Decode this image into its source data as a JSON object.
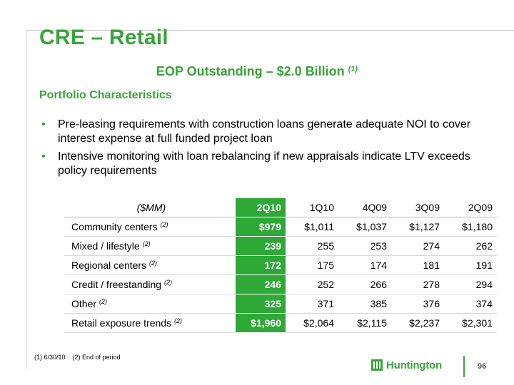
{
  "title": "CRE – Retail",
  "subtitle": {
    "text": "EOP Outstanding – $2.0 Billion ",
    "note": "(1)"
  },
  "section": "Portfolio Characteristics",
  "bullets": [
    "Pre-leasing requirements with construction loans generate adequate NOI to cover interest expense at full funded project loan",
    "Intensive monitoring with loan rebalancing if new appraisals indicate LTV exceeds policy requirements"
  ],
  "table": {
    "unit_header": "($MM)",
    "columns": [
      "2Q10",
      "1Q10",
      "4Q09",
      "3Q09",
      "2Q09"
    ],
    "rows": [
      {
        "label": "Community centers ",
        "note": "(2)",
        "values": [
          "$979",
          "$1,011",
          "$1,037",
          "$1,127",
          "$1,180"
        ]
      },
      {
        "label": "Mixed / lifestyle ",
        "note": "(2)",
        "values": [
          "239",
          "255",
          "253",
          "274",
          "262"
        ]
      },
      {
        "label": "Regional centers ",
        "note": "(2)",
        "values": [
          "172",
          "175",
          "174",
          "181",
          "191"
        ]
      },
      {
        "label": "Credit / freestanding ",
        "note": "(2)",
        "values": [
          "246",
          "252",
          "266",
          "278",
          "294"
        ]
      },
      {
        "label": "Other ",
        "note": "(2)",
        "values": [
          "325",
          "371",
          "385",
          "376",
          "374"
        ]
      },
      {
        "label": "Retail exposure trends ",
        "note": "(2)",
        "values": [
          "$1,960",
          "$2,064",
          "$2,115",
          "$2,237",
          "$2,301"
        ]
      }
    ]
  },
  "footnotes": [
    "(1)  6/30/10",
    "(2)  End of period"
  ],
  "logo": {
    "text": "Huntington",
    "icon": "huntington-logo-icon",
    "color": "#3aa33a"
  },
  "page_number": "96",
  "colors": {
    "accent": "#3aa33a",
    "highlight": "#2ea836"
  }
}
